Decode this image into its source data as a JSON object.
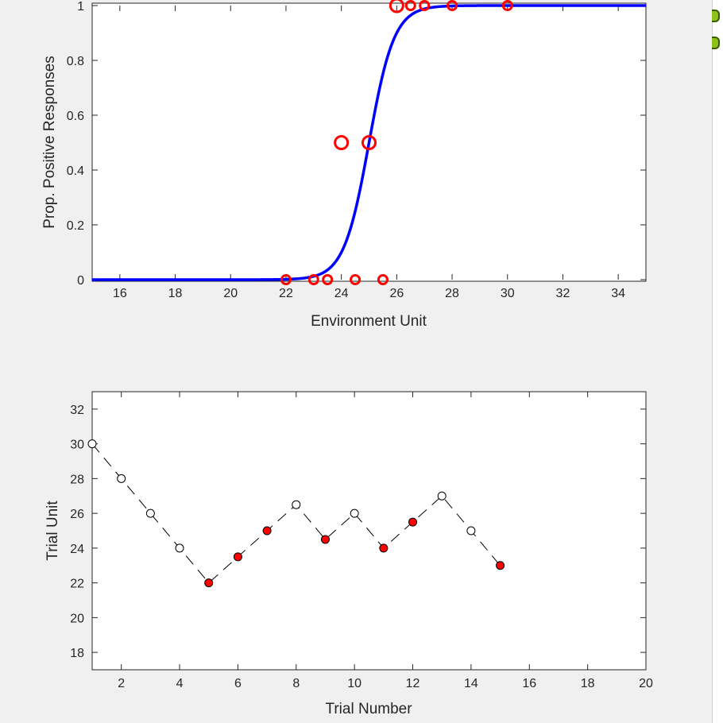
{
  "chart_data": [
    {
      "type": "line",
      "xlabel": "Environment Unit",
      "ylabel": "Prop. Positive Responses",
      "xlim": [
        15,
        35
      ],
      "ylim": [
        0,
        1
      ],
      "xticks": [
        16,
        18,
        20,
        22,
        24,
        26,
        28,
        30,
        32,
        34
      ],
      "yticks": [
        0,
        0.2,
        0.4,
        0.6,
        0.8,
        1
      ],
      "ytick_labels": [
        "0",
        "0.2",
        "0.4",
        "0.6",
        "0.8",
        "1"
      ],
      "series": [
        {
          "kind": "logistic-curve",
          "color": "#0000ff",
          "midpoint": 25,
          "slope": 2.2
        },
        {
          "kind": "scatter",
          "marker": "open-circle",
          "color": "#ff0000",
          "points": [
            {
              "x": 22,
              "y": 0,
              "size": "small"
            },
            {
              "x": 23,
              "y": 0,
              "size": "small"
            },
            {
              "x": 23.5,
              "y": 0,
              "size": "small"
            },
            {
              "x": 24.5,
              "y": 0,
              "size": "small"
            },
            {
              "x": 25.5,
              "y": 0,
              "size": "small"
            },
            {
              "x": 24,
              "y": 0.5,
              "size": "large"
            },
            {
              "x": 25,
              "y": 0.5,
              "size": "large"
            },
            {
              "x": 26,
              "y": 1,
              "size": "large"
            },
            {
              "x": 26.5,
              "y": 1,
              "size": "small"
            },
            {
              "x": 27,
              "y": 1,
              "size": "small"
            },
            {
              "x": 28,
              "y": 1,
              "size": "small"
            },
            {
              "x": 30,
              "y": 1,
              "size": "small"
            }
          ]
        }
      ],
      "grid": false
    },
    {
      "type": "line",
      "xlabel": "Trial Number",
      "ylabel": "Trial Unit",
      "xlim": [
        1,
        20
      ],
      "ylim": [
        17,
        33
      ],
      "xticks": [
        2,
        4,
        6,
        8,
        10,
        12,
        14,
        16,
        18,
        20
      ],
      "yticks": [
        18,
        20,
        22,
        24,
        26,
        28,
        30,
        32
      ],
      "line_style": "dashed",
      "line_color": "#000000",
      "filled_color": "#ff0000",
      "open_color": "#ffffff",
      "points": [
        {
          "x": 1,
          "y": 30,
          "filled": false
        },
        {
          "x": 2,
          "y": 28,
          "filled": false
        },
        {
          "x": 3,
          "y": 26,
          "filled": false
        },
        {
          "x": 4,
          "y": 24,
          "filled": false
        },
        {
          "x": 5,
          "y": 22,
          "filled": true
        },
        {
          "x": 6,
          "y": 23.5,
          "filled": true
        },
        {
          "x": 7,
          "y": 25,
          "filled": true
        },
        {
          "x": 8,
          "y": 26.5,
          "filled": false
        },
        {
          "x": 9,
          "y": 24.5,
          "filled": true
        },
        {
          "x": 10,
          "y": 26,
          "filled": false
        },
        {
          "x": 11,
          "y": 24,
          "filled": true
        },
        {
          "x": 12,
          "y": 25.5,
          "filled": true
        },
        {
          "x": 13,
          "y": 27,
          "filled": false
        },
        {
          "x": 14,
          "y": 25,
          "filled": false
        },
        {
          "x": 15,
          "y": 23,
          "filled": true
        }
      ],
      "grid": false
    }
  ]
}
